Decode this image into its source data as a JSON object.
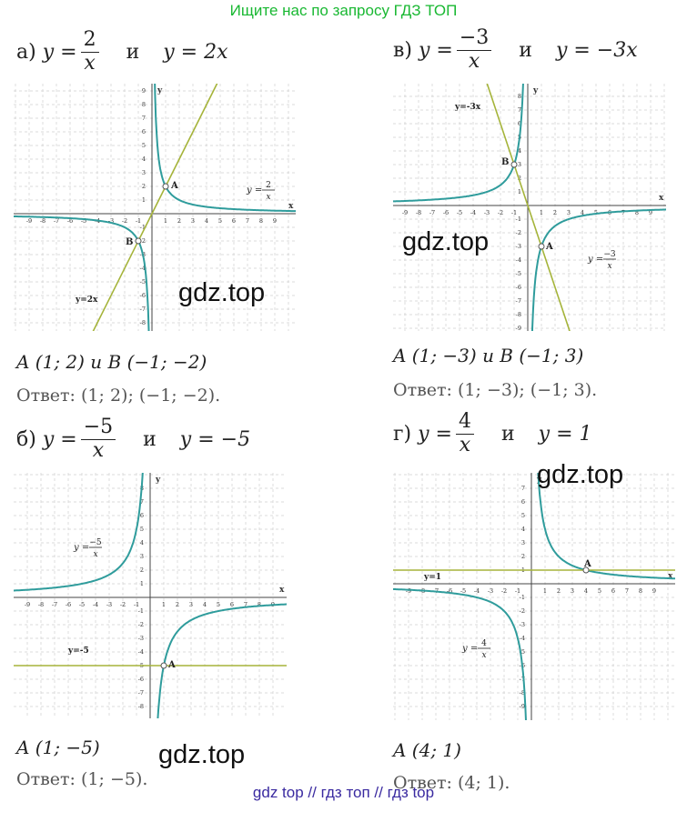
{
  "banner": "Ищите нас по запросу ГДЗ ТОП",
  "footer": "gdz top  //  гдз топ  //  гдз top",
  "watermark": "gdz.top",
  "conj": "и",
  "answer_word": "Ответ:",
  "colors": {
    "curve": "#2f9c9c",
    "line": "#a5b43a",
    "banner": "#19b832",
    "footer": "#3a2aa0",
    "grid": "#d0d0d0"
  },
  "problems": {
    "a": {
      "prefix": "а)",
      "lhs": "y =",
      "num": "2",
      "den": "x",
      "rhs": "y = 2x",
      "points": "A (1; 2)  и  B (−1; −2)",
      "answer": "(1; 2);  (−1; −2).",
      "curve_label": "y =",
      "curve_num": "2",
      "curve_den": "x",
      "line_label": "y=2x",
      "point_a": "A",
      "point_b": "B",
      "y_axis": "y",
      "x_axis": "x",
      "x_ticks": [
        "-9",
        "-8",
        "-7",
        "-6",
        "-5",
        "-4",
        "-3",
        "-2",
        "-1",
        "1",
        "2",
        "3",
        "4",
        "5",
        "6",
        "7",
        "8",
        "9"
      ],
      "y_ticks": [
        "9",
        "8",
        "7",
        "6",
        "5",
        "4",
        "3",
        "2",
        "1",
        "-1",
        "-2",
        "-3",
        "-4",
        "-5",
        "-6",
        "-7",
        "-8",
        "-9"
      ]
    },
    "b": {
      "prefix": "б)",
      "lhs": "y =",
      "num": "−5",
      "den": "x",
      "rhs": "y = −5",
      "points": "A  (1; −5)",
      "answer": "(1; −5).",
      "curve_label": "y =",
      "curve_num": "−5",
      "curve_den": "x",
      "line_label": "y=-5",
      "point_a": "A",
      "y_axis": "y",
      "x_axis": "x",
      "x_ticks": [
        "-9",
        "-8",
        "-7",
        "-6",
        "-5",
        "-4",
        "-3",
        "-2",
        "-1",
        "1",
        "2",
        "3",
        "4",
        "5",
        "6",
        "7",
        "8",
        "9"
      ],
      "y_ticks": [
        "9",
        "8",
        "7",
        "6",
        "5",
        "4",
        "3",
        "2",
        "1",
        "-1",
        "-2",
        "-3",
        "-4",
        "-5",
        "-6",
        "-7",
        "-8",
        "-9"
      ]
    },
    "v": {
      "prefix": "в)",
      "lhs": "y =",
      "num": "−3",
      "den": "x",
      "rhs": "y = −3x",
      "points": "A (1; −3)  и  B (−1;  3)",
      "answer": "(1; −3);  (−1;  3).",
      "curve_label": "y =",
      "curve_num": "−3",
      "curve_den": "x",
      "line_label": "y=-3x",
      "point_a": "A",
      "point_b": "B",
      "y_axis": "y",
      "x_axis": "x",
      "x_ticks": [
        "-9",
        "-8",
        "-7",
        "-6",
        "-5",
        "-4",
        "-3",
        "-2",
        "-1",
        "1",
        "2",
        "3",
        "4",
        "5",
        "6",
        "7",
        "8",
        "9"
      ],
      "y_ticks": [
        "9",
        "8",
        "7",
        "6",
        "5",
        "4",
        "3",
        "2",
        "1",
        "-1",
        "-2",
        "-3",
        "-4",
        "-5",
        "-6",
        "-7",
        "-8",
        "-9"
      ]
    },
    "g": {
      "prefix": "г)",
      "lhs": "y =",
      "num": "4",
      "den": "x",
      "rhs": "y = 1",
      "points": "A (4; 1)",
      "answer": " (4; 1).",
      "curve_label": "y =",
      "curve_num": "4",
      "curve_den": "x",
      "line_label": "y=1",
      "point_a": "A",
      "y_axis": "y",
      "x_axis": "x",
      "x_ticks": [
        "-9",
        "-8",
        "-7",
        "-6",
        "-5",
        "-4",
        "-3",
        "-2",
        "-1",
        "1",
        "2",
        "3",
        "4",
        "5",
        "6",
        "7",
        "8",
        "9"
      ],
      "y_ticks": [
        "9",
        "8",
        "7",
        "6",
        "5",
        "4",
        "3",
        "2",
        "1",
        "-1",
        "-2",
        "-3",
        "-4",
        "-5",
        "-6",
        "-7",
        "-8",
        "-9"
      ]
    }
  },
  "chart_data": [
    {
      "type": "line",
      "series": [
        {
          "name": "y=2/x",
          "function": "2/x"
        },
        {
          "name": "y=2x",
          "function": "2x"
        }
      ],
      "points": [
        {
          "label": "A",
          "x": 1,
          "y": 2
        },
        {
          "label": "B",
          "x": -1,
          "y": -2
        }
      ],
      "xlim": [
        -9,
        9
      ],
      "ylim": [
        -9,
        9
      ],
      "grid": true
    },
    {
      "type": "line",
      "series": [
        {
          "name": "y=-5/x",
          "function": "-5/x"
        },
        {
          "name": "y=-5",
          "function": "-5"
        }
      ],
      "points": [
        {
          "label": "A",
          "x": 1,
          "y": -5
        }
      ],
      "xlim": [
        -9,
        9
      ],
      "ylim": [
        -9,
        9
      ],
      "grid": true
    },
    {
      "type": "line",
      "series": [
        {
          "name": "y=-3/x",
          "function": "-3/x"
        },
        {
          "name": "y=-3x",
          "function": "-3x"
        }
      ],
      "points": [
        {
          "label": "A",
          "x": 1,
          "y": -3
        },
        {
          "label": "B",
          "x": -1,
          "y": 3
        }
      ],
      "xlim": [
        -9,
        9
      ],
      "ylim": [
        -9,
        9
      ],
      "grid": true
    },
    {
      "type": "line",
      "series": [
        {
          "name": "y=4/x",
          "function": "4/x"
        },
        {
          "name": "y=1",
          "function": "1"
        }
      ],
      "points": [
        {
          "label": "A",
          "x": 4,
          "y": 1
        }
      ],
      "xlim": [
        -9,
        9
      ],
      "ylim": [
        -9,
        9
      ],
      "grid": true
    }
  ]
}
